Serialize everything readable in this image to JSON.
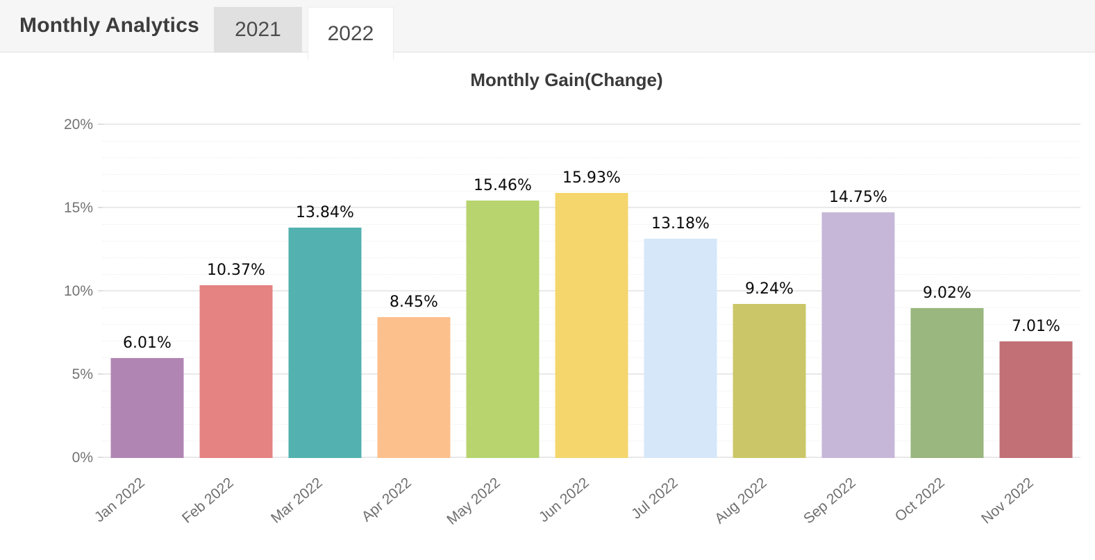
{
  "header": {
    "title": "Monthly Analytics",
    "tabs": [
      {
        "label": "2021",
        "active": false
      },
      {
        "label": "2022",
        "active": true
      }
    ]
  },
  "chart_data": {
    "type": "bar",
    "title": "Monthly Gain(Change)",
    "categories": [
      "Jan 2022",
      "Feb 2022",
      "Mar 2022",
      "Apr 2022",
      "May 2022",
      "Jun 2022",
      "Jul 2022",
      "Aug 2022",
      "Sep 2022",
      "Oct 2022",
      "Nov 2022"
    ],
    "values": [
      6.01,
      10.37,
      13.84,
      8.45,
      15.46,
      15.93,
      13.18,
      9.24,
      14.75,
      9.02,
      7.01
    ],
    "value_labels": [
      "6.01%",
      "10.37%",
      "13.84%",
      "8.45%",
      "15.46%",
      "15.93%",
      "13.18%",
      "9.24%",
      "14.75%",
      "9.02%",
      "7.01%"
    ],
    "bar_colors": [
      "#b185b3",
      "#e58282",
      "#53b1af",
      "#fcc08d",
      "#b7d46e",
      "#f5d66d",
      "#d5e7f9",
      "#cbc768",
      "#c6b7d8",
      "#99b77e",
      "#c26f76"
    ],
    "xlabel": "",
    "ylabel": "",
    "ylim": [
      0,
      20
    ],
    "ytick_step": 5,
    "ytick_labels": [
      "0%",
      "5%",
      "10%",
      "15%",
      "20%"
    ],
    "minor_tick_step": 1,
    "grid": true,
    "legend": false,
    "x_label_rotation_deg": -40
  },
  "colors": {
    "header_bg": "#f6f6f6",
    "header_border": "#ececec",
    "tab_inactive_bg": "#e0e0e0",
    "tab_active_bg": "#ffffff",
    "major_gridline": "#e9e9e9",
    "minor_gridline": "#eeeeee",
    "axis_label_text": "#737373",
    "value_label_text": "#0a0a0a",
    "title_text": "#3a3a3a"
  }
}
